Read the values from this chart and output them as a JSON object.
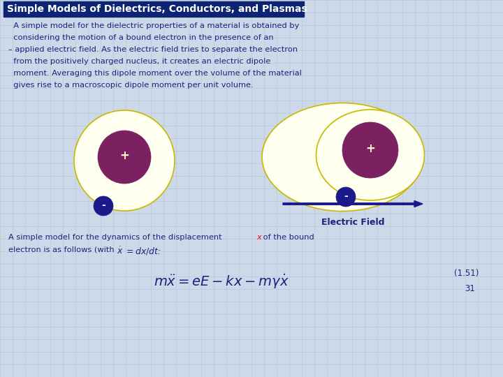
{
  "title": "Simple Models of Dielectrics, Conductors, and Plasmas",
  "title_bg": "#0d2472",
  "title_color": "#ffffff",
  "bg_color": "#cdd8e8",
  "grid_color": "#b8c8dc",
  "text_color": "#1a237e",
  "text1_lines": [
    "  A simple model for the dielectric properties of a material is obtained by",
    "  considering the motion of a bound electron in the presence of an",
    "– applied electric field. As the electric field tries to separate the electron",
    "  from the positively charged nucleus, it creates an electric dipole",
    "  moment. Averaging this dipole moment over the volume of the material",
    "  gives rise to a macroscopic dipole moment per unit volume."
  ],
  "outer_ellipse_color": "#fffff0",
  "outer_ellipse_edge": "#c8b800",
  "nucleus_color": "#7b2060",
  "electron_color": "#1a1a8c",
  "arrow_color": "#1a1a8c",
  "electric_field_label": "Electric Field",
  "eq_label": "(1.51)",
  "page_num": "31"
}
